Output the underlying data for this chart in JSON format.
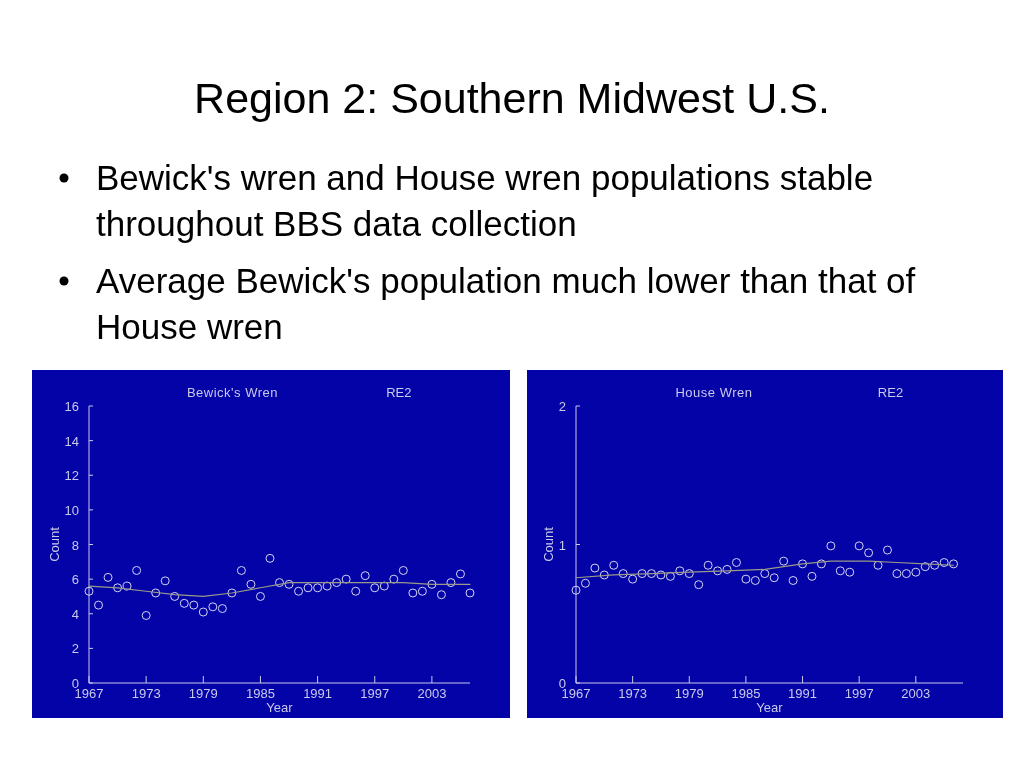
{
  "chart_data": [
    {
      "type": "other",
      "title": "Region 2: Southern Midwest U.S.",
      "annotations": [
        "Bewick's wren and House wren populations stable throughout BBS data collection",
        "Average Bewick's population much lower than that of House wren"
      ]
    },
    {
      "type": "scatter",
      "title": "Bewick's Wren",
      "subtitle": "RE2",
      "xlabel": "Year",
      "ylabel": "Count",
      "x": [
        1967,
        1968,
        1969,
        1970,
        1971,
        1972,
        1973,
        1974,
        1975,
        1976,
        1977,
        1978,
        1979,
        1980,
        1981,
        1982,
        1983,
        1984,
        1985,
        1986,
        1987,
        1988,
        1989,
        1990,
        1991,
        1992,
        1993,
        1994,
        1995,
        1996,
        1997,
        1998,
        1999,
        2000,
        2001,
        2002,
        2003,
        2004,
        2005,
        2006,
        2007
      ],
      "xlim": [
        1967,
        2007
      ],
      "xticks": [
        1967,
        1973,
        1979,
        1985,
        1991,
        1997,
        2003
      ],
      "ylim": [
        0,
        16
      ],
      "yticks": [
        0,
        2,
        4,
        6,
        8,
        10,
        12,
        14,
        16
      ],
      "series": [
        {
          "type": "scatter",
          "marker": "circle",
          "color": "#d4d4f4",
          "values": [
            5.3,
            4.5,
            6.1,
            5.5,
            5.6,
            6.5,
            3.9,
            5.2,
            5.9,
            5.0,
            4.6,
            4.5,
            4.1,
            4.4,
            4.3,
            5.2,
            6.5,
            5.7,
            5.0,
            7.2,
            5.8,
            5.7,
            5.3,
            5.5,
            5.5,
            5.6,
            5.8,
            6.0,
            5.3,
            6.2,
            5.5,
            5.6,
            6.0,
            6.5,
            5.2,
            5.3,
            5.7,
            5.1,
            5.8,
            6.3,
            5.2
          ]
        },
        {
          "type": "line",
          "marker": "none",
          "color": "#9a9a86",
          "x": [
            1967,
            1970,
            1973,
            1976,
            1979,
            1982,
            1985,
            1988,
            1991,
            1994,
            1997,
            2000,
            2003,
            2007
          ],
          "values": [
            5.6,
            5.5,
            5.3,
            5.1,
            5.0,
            5.2,
            5.5,
            5.8,
            5.8,
            5.8,
            5.8,
            5.8,
            5.7,
            5.7
          ]
        }
      ]
    },
    {
      "type": "scatter",
      "title": "House Wren",
      "subtitle": "RE2",
      "xlabel": "Year",
      "ylabel": "Count",
      "x": [
        1967,
        1968,
        1969,
        1970,
        1971,
        1972,
        1973,
        1974,
        1975,
        1976,
        1977,
        1978,
        1979,
        1980,
        1981,
        1982,
        1983,
        1984,
        1985,
        1986,
        1987,
        1988,
        1989,
        1990,
        1991,
        1992,
        1993,
        1994,
        1995,
        1996,
        1997,
        1998,
        1999,
        2000,
        2001,
        2002,
        2003,
        2004,
        2005,
        2006,
        2007
      ],
      "xlim": [
        1967,
        2008
      ],
      "xticks": [
        1967,
        1973,
        1979,
        1985,
        1991,
        1997,
        2003
      ],
      "ylim": [
        0,
        2
      ],
      "yticks": [
        0,
        1,
        2
      ],
      "series": [
        {
          "type": "scatter",
          "marker": "circle",
          "color": "#d4d4f4",
          "values": [
            0.67,
            0.72,
            0.83,
            0.78,
            0.85,
            0.79,
            0.75,
            0.79,
            0.79,
            0.78,
            0.77,
            0.81,
            0.79,
            0.71,
            0.85,
            0.81,
            0.82,
            0.87,
            0.75,
            0.74,
            0.79,
            0.76,
            0.88,
            0.74,
            0.86,
            0.77,
            0.86,
            0.99,
            0.81,
            0.8,
            0.99,
            0.94,
            0.85,
            0.96,
            0.79,
            0.79,
            0.8,
            0.84,
            0.85,
            0.87,
            0.86
          ]
        },
        {
          "type": "line",
          "marker": "none",
          "color": "#9a9a86",
          "x": [
            1967,
            1971,
            1975,
            1979,
            1983,
            1987,
            1989,
            1991,
            1994,
            1998,
            2001,
            2004,
            2007
          ],
          "values": [
            0.76,
            0.78,
            0.79,
            0.8,
            0.81,
            0.82,
            0.84,
            0.86,
            0.88,
            0.88,
            0.87,
            0.86,
            0.85
          ]
        }
      ]
    }
  ]
}
